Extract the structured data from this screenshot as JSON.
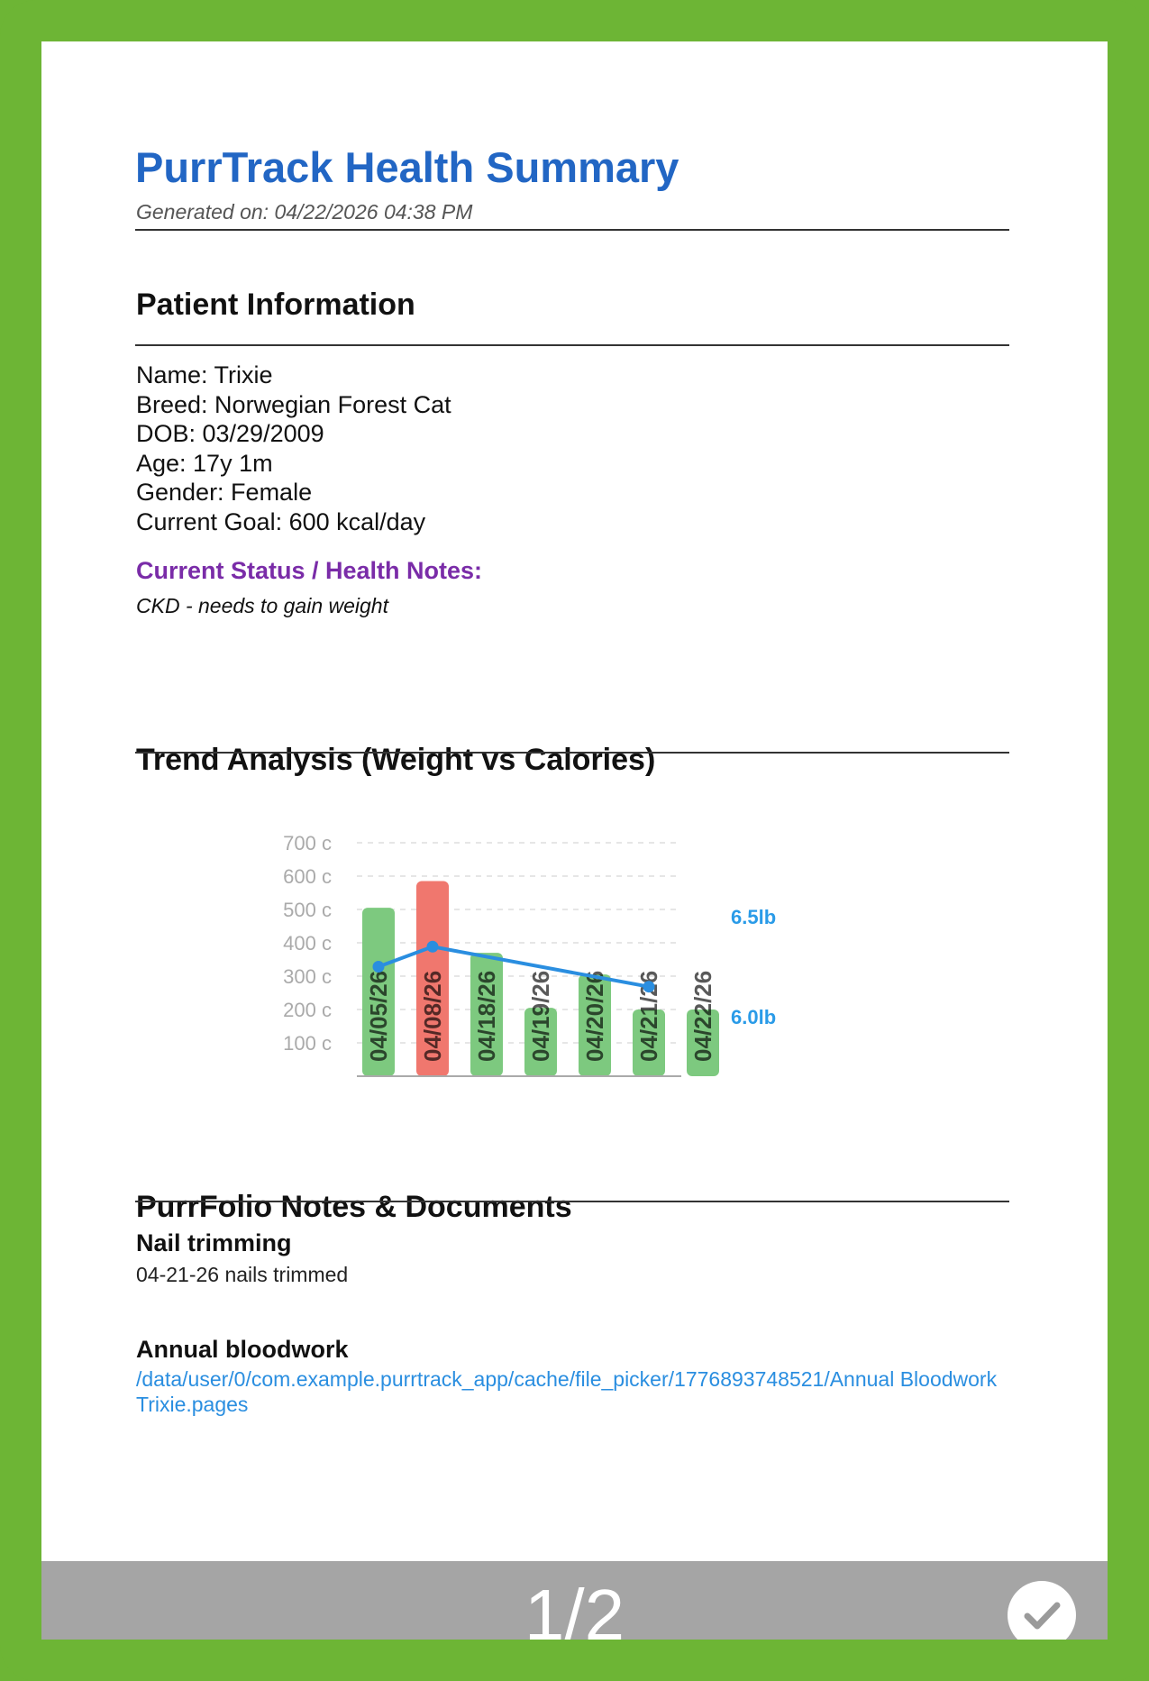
{
  "report": {
    "title": "PurrTrack Health Summary",
    "generated": "Generated on: 04/22/2026 04:38 PM"
  },
  "patient": {
    "heading": "Patient Information",
    "lines": [
      "Name: Trixie",
      "Breed: Norwegian Forest Cat",
      "DOB: 03/29/2009",
      "Age: 17y 1m",
      "Gender: Female",
      "Current Goal: 600 kcal/day"
    ],
    "status_label": "Current Status / Health Notes:",
    "status_note": "CKD - needs to gain weight"
  },
  "trend": {
    "heading": "Trend Analysis (Weight vs Calories)"
  },
  "chart_data": {
    "type": "bar",
    "categories": [
      "04/05/26",
      "04/08/26",
      "04/18/26",
      "04/19/26",
      "04/20/26",
      "04/21/26",
      "04/22/26"
    ],
    "series": [
      {
        "values": [
          505,
          585,
          370,
          205,
          305,
          200,
          200
        ],
        "colors": [
          "#7dc97f",
          "#f0776e",
          "#7dc97f",
          "#7dc97f",
          "#7dc97f",
          "#7dc97f",
          "#7dc97f"
        ]
      },
      {
        "type": "line",
        "values": [
          6.25,
          6.35,
          null,
          null,
          null,
          6.15,
          null
        ],
        "color": "#2a8ee0"
      }
    ],
    "y_ticks": [
      "700 c",
      "600 c",
      "500 c",
      "400 c",
      "300 c",
      "200 c",
      "100 c"
    ],
    "y_tick_values": [
      700,
      600,
      500,
      400,
      300,
      200,
      100
    ],
    "ylim": [
      0,
      700
    ],
    "y2_ticks": [
      "6.5lb",
      "6.0lb"
    ],
    "y2_tick_values": [
      6.5,
      6.0
    ],
    "grid": true,
    "bar_colors": {
      "normal": "#7dc97f",
      "over_goal": "#f0776e"
    },
    "line_color": "#2a8ee0"
  },
  "notes": {
    "heading": "PurrFolio Notes & Documents",
    "items": [
      {
        "title": "Nail trimming",
        "body": "04-21-26 nails trimmed"
      },
      {
        "title": "Annual bloodwork",
        "link": "/data/user/0/com.example.purrtrack_app/cache/file_picker/1776893748521/Annual Bloodwork Trixie.pages"
      }
    ]
  },
  "viewer": {
    "page_indicator": "1/2",
    "confirm_icon": "check-icon"
  }
}
